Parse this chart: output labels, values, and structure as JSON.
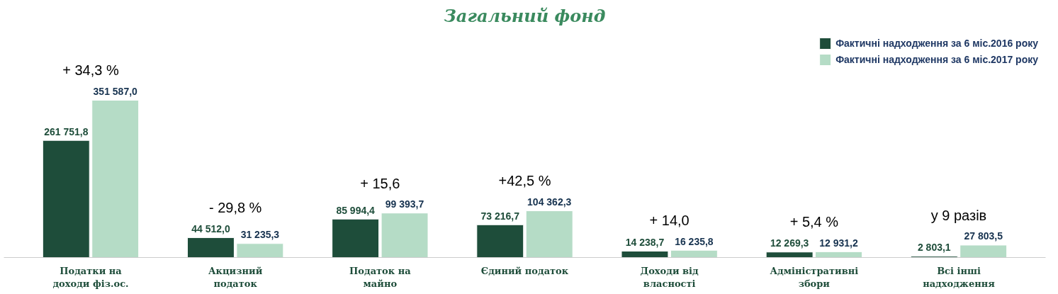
{
  "chart_data": {
    "type": "bar",
    "title": "Загальний фонд",
    "categories": [
      "Податки на\nдоходи фіз.ос.",
      "Акцизний\nподаток",
      "Податок на\nмайно",
      "Єдиний податок",
      "Доходи від\nвласності",
      "Адміністративні\nзбори",
      "Всі інші\nнадходження"
    ],
    "series": [
      {
        "name": "Фактичні надходження за 6 міс.2016 року",
        "color": "#1e4d3a",
        "values": [
          261751.8,
          44512.0,
          85994.4,
          73216.7,
          14238.7,
          12269.3,
          2803.1
        ],
        "value_labels": [
          "261 751,8",
          "44 512,0",
          "85 994,4",
          "73 216,7",
          "14 238,7",
          "12 269,3",
          "2 803,1"
        ]
      },
      {
        "name": "Фактичні надходження за 6 міс.2017 року",
        "color": "#b5dcc6",
        "values": [
          351587.0,
          31235.3,
          99393.7,
          104362.3,
          16235.8,
          12931.2,
          27803.5
        ],
        "value_labels": [
          "351 587,0",
          "31 235,3",
          "99 393,7",
          "104 362,3",
          "16 235,8",
          "12 931,2",
          "27 803,5"
        ]
      }
    ],
    "annotations": [
      "+ 34,3 %",
      "- 29,8 %",
      "+ 15,6",
      "+42,5 %",
      "+ 14,0",
      "+ 5,4 %",
      "у 9 разів"
    ],
    "legend": "top right",
    "grid": false
  }
}
